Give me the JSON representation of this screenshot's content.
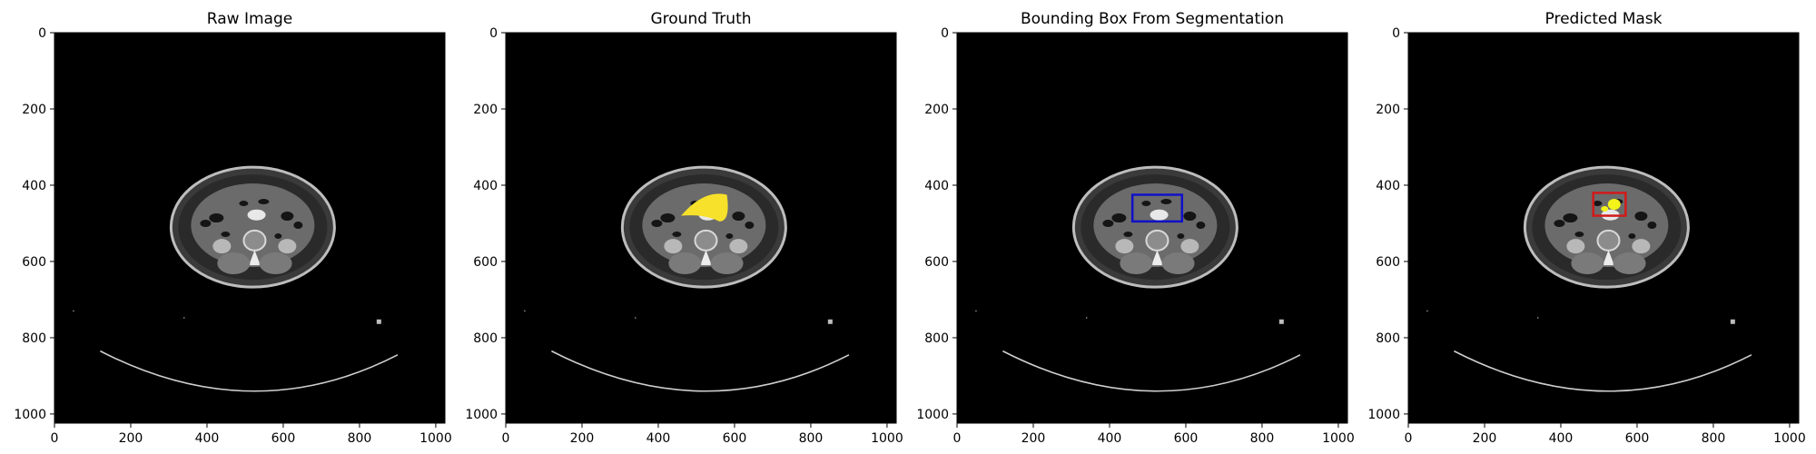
{
  "figure": {
    "panels": [
      {
        "title": "Raw Image",
        "overlay": "none"
      },
      {
        "title": "Ground Truth",
        "overlay": "mask"
      },
      {
        "title": "Bounding Box From Segmentation",
        "overlay": "box"
      },
      {
        "title": "Predicted Mask",
        "overlay": "pred"
      }
    ],
    "axis": {
      "x_ticks": [
        "0",
        "200",
        "400",
        "600",
        "800",
        "1000"
      ],
      "y_ticks": [
        "0",
        "200",
        "400",
        "600",
        "800",
        "1000"
      ],
      "xlim": [
        0,
        1024
      ],
      "ylim": [
        0,
        1024
      ]
    },
    "ground_truth_color": "#f7e12a",
    "box_color": "#1010c8",
    "pred_box_color": "#d21a1a",
    "pred_mask_color": "#f3f31a",
    "gt_mask_region": {
      "x": [
        460,
        590
      ],
      "y": [
        420,
        495
      ]
    },
    "bbox_segmentation": {
      "x": [
        460,
        590
      ],
      "y": [
        425,
        495
      ]
    },
    "bbox_pred": {
      "x": [
        485,
        570
      ],
      "y": [
        420,
        480
      ]
    }
  }
}
